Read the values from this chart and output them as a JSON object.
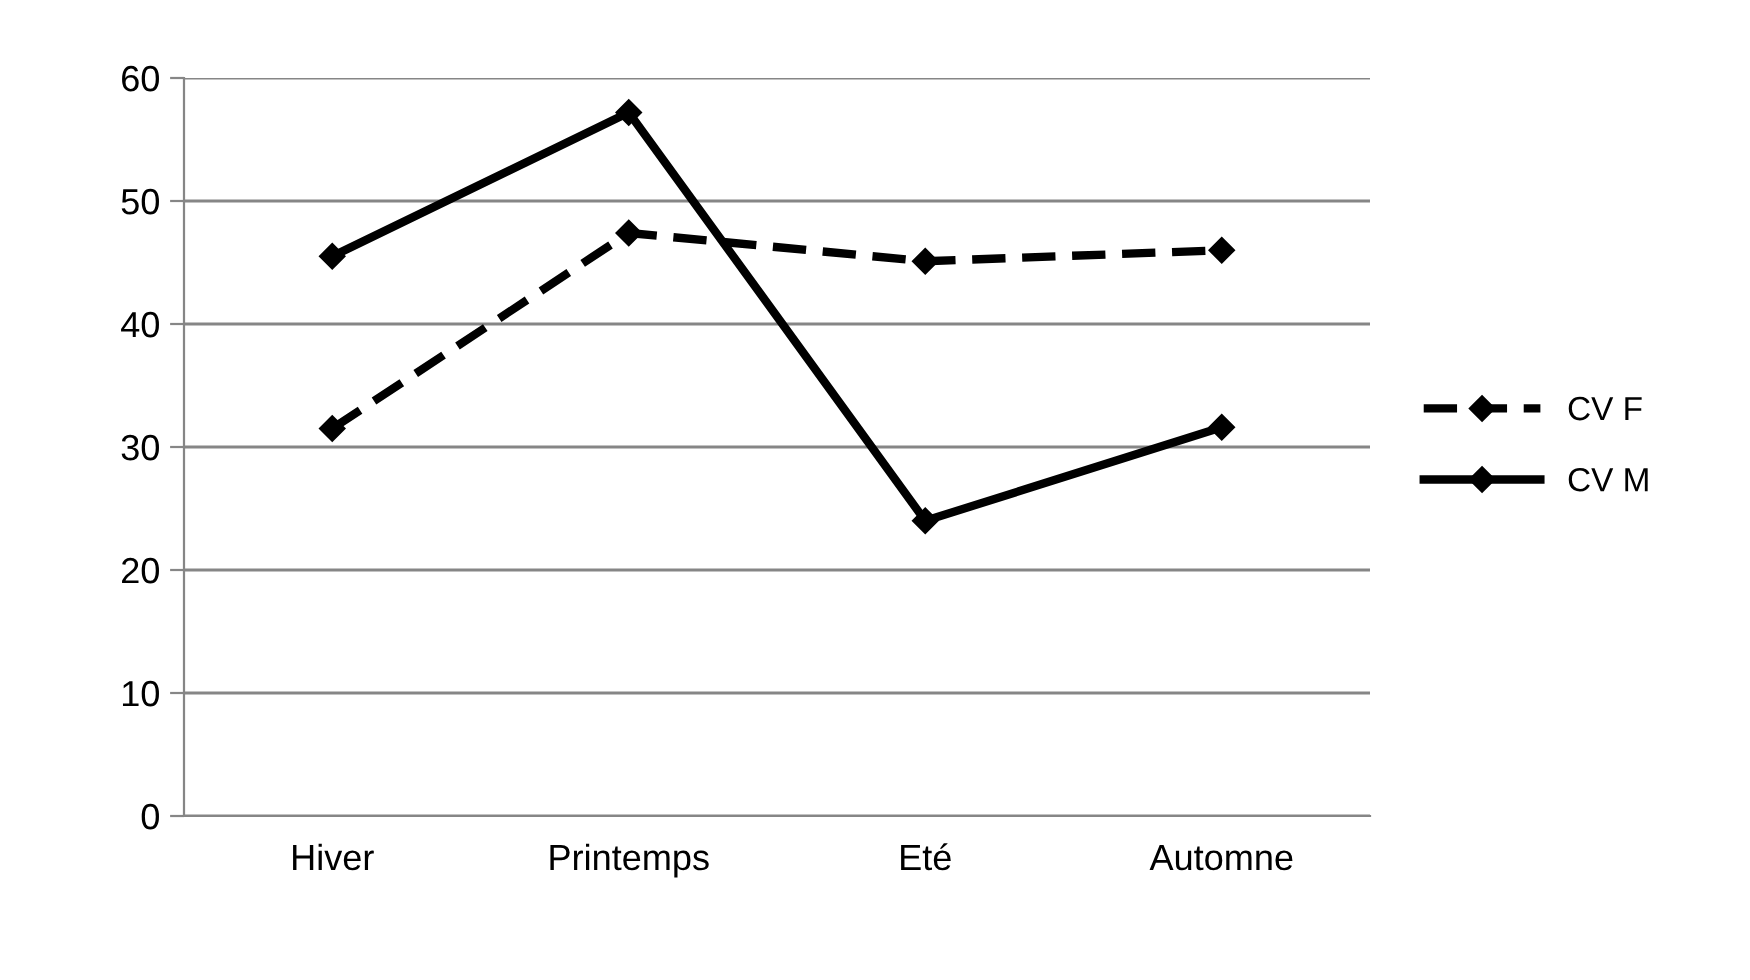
{
  "chart_data": {
    "type": "line",
    "categories": [
      "Hiver",
      "Printemps",
      "Eté",
      "Automne"
    ],
    "series": [
      {
        "name": "CV F",
        "color": "#000000",
        "line_style": "dashed",
        "values": [
          31.5,
          47.4,
          45.1,
          46.0
        ]
      },
      {
        "name": "CV M",
        "color": "#000000",
        "line_style": "solid",
        "values": [
          45.5,
          57.2,
          24.0,
          31.6
        ]
      }
    ],
    "ylim": [
      0,
      60
    ],
    "yticks": [
      0,
      10,
      20,
      30,
      40,
      50,
      60
    ],
    "grid": "y",
    "legend": "right",
    "marker": "diamond"
  }
}
